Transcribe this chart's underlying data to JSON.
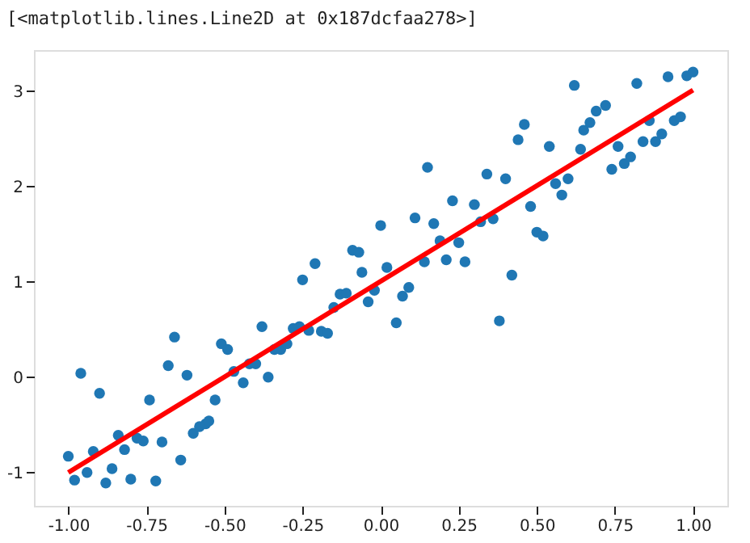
{
  "chart_data": {
    "type": "scatter",
    "annotations": [
      "[<matplotlib.lines.Line2D at 0x187dcfaa278>]"
    ],
    "xlim": [
      -1.11,
      1.11
    ],
    "ylim": [
      -1.35,
      3.43
    ],
    "xticks": [
      {
        "value": -1,
        "label": "-1.00"
      },
      {
        "value": -0.75,
        "label": "-0.75"
      },
      {
        "value": -0.5,
        "label": "-0.50"
      },
      {
        "value": -0.25,
        "label": "-0.25"
      },
      {
        "value": 0,
        "label": "0.00"
      },
      {
        "value": 0.25,
        "label": "0.25"
      },
      {
        "value": 0.5,
        "label": "0.50"
      },
      {
        "value": 0.75,
        "label": "0.75"
      },
      {
        "value": 1,
        "label": "1.00"
      }
    ],
    "yticks": [
      -1,
      0,
      1,
      2,
      3
    ],
    "grid": false,
    "series": [
      {
        "marker": "circle",
        "color": "#1f77b4",
        "x": [
          -1.0,
          -0.98,
          -0.96,
          -0.94,
          -0.92,
          -0.9,
          -0.88,
          -0.86,
          -0.84,
          -0.82,
          -0.8,
          -0.78,
          -0.76,
          -0.74,
          -0.72,
          -0.7,
          -0.68,
          -0.66,
          -0.64,
          -0.62,
          -0.6,
          -0.58,
          -0.56,
          -0.55,
          -0.53,
          -0.51,
          -0.49,
          -0.47,
          -0.44,
          -0.42,
          -0.4,
          -0.38,
          -0.36,
          -0.34,
          -0.32,
          -0.3,
          -0.28,
          -0.26,
          -0.25,
          -0.23,
          -0.21,
          -0.19,
          -0.17,
          -0.15,
          -0.13,
          -0.11,
          -0.09,
          -0.07,
          -0.06,
          -0.04,
          -0.02,
          0.0,
          0.02,
          0.05,
          0.07,
          0.09,
          0.11,
          0.14,
          0.15,
          0.17,
          0.19,
          0.21,
          0.23,
          0.25,
          0.27,
          0.3,
          0.32,
          0.34,
          0.36,
          0.38,
          0.4,
          0.42,
          0.44,
          0.46,
          0.48,
          0.5,
          0.52,
          0.54,
          0.56,
          0.58,
          0.6,
          0.62,
          0.64,
          0.65,
          0.67,
          0.69,
          0.72,
          0.74,
          0.76,
          0.78,
          0.8,
          0.82,
          0.84,
          0.86,
          0.88,
          0.9,
          0.92,
          0.94,
          0.96,
          0.98,
          1.0
        ],
        "values": [
          -0.83,
          -1.08,
          0.04,
          -1.0,
          -0.78,
          -0.17,
          -1.11,
          -0.96,
          -0.61,
          -0.76,
          -1.07,
          -0.64,
          -0.67,
          -0.24,
          -1.09,
          -0.68,
          0.12,
          0.42,
          -0.87,
          0.02,
          -0.59,
          -0.52,
          -0.49,
          -0.46,
          -0.24,
          0.35,
          0.29,
          0.06,
          -0.06,
          0.14,
          0.14,
          0.53,
          0.0,
          0.29,
          0.29,
          0.35,
          0.51,
          0.53,
          1.02,
          0.49,
          1.19,
          0.48,
          0.46,
          0.73,
          0.87,
          0.88,
          1.33,
          1.31,
          1.1,
          0.79,
          0.91,
          1.59,
          1.15,
          0.57,
          0.85,
          0.94,
          1.67,
          1.21,
          2.2,
          1.61,
          1.43,
          1.23,
          1.85,
          1.41,
          1.21,
          1.81,
          1.63,
          2.13,
          1.66,
          0.59,
          2.08,
          1.07,
          2.49,
          2.65,
          1.79,
          1.52,
          1.48,
          2.42,
          2.03,
          1.91,
          2.08,
          3.06,
          2.39,
          2.59,
          2.67,
          2.79,
          2.85,
          2.18,
          2.42,
          2.24,
          2.31,
          3.08,
          2.47,
          2.69,
          2.47,
          2.55,
          3.15,
          2.69,
          2.73,
          3.16,
          3.2
        ]
      },
      {
        "type": "line",
        "color": "#ff0000",
        "line_style": "solid",
        "x": [
          -1.0,
          1.0
        ],
        "values": [
          -1.0,
          3.01
        ]
      }
    ]
  }
}
